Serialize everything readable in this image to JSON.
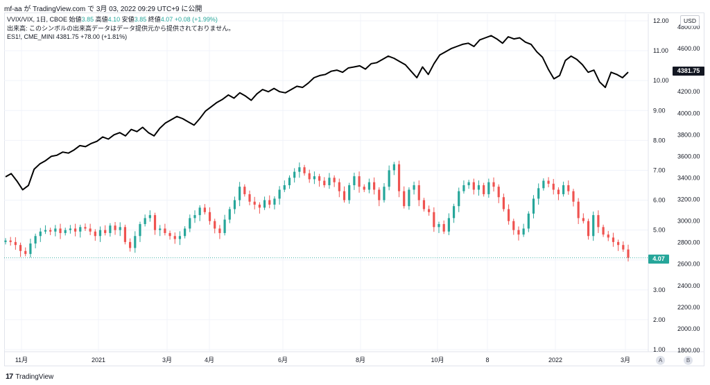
{
  "header": {
    "caption": "mf-aa が TradingView.com で 3月 03, 2022 09:29 UTC+9 に公開"
  },
  "legend": {
    "vvix_symbol": "VVIX/VIX, 1日, CBOE",
    "open_label": "始値",
    "open_value": "3.85",
    "high_label": "高値",
    "high_value": "4.10",
    "low_label": "安値",
    "low_value": "3.85",
    "close_label": "終値",
    "close_value": "4.07",
    "change": "+0.08 (+1.99%)",
    "volume_notice": "出来高: このシンボルの出来高データはデータ提供元から提供されておりません。",
    "es_symbol": "ES1!, CME_MINI",
    "es_value": "4381.75",
    "es_change": "+78.00 (+1.81%)"
  },
  "currency_button": "USD",
  "price_tags": {
    "es": "4381.75",
    "vvix": "4.07"
  },
  "buttons": {
    "a": "A",
    "b": "B"
  },
  "footer": {
    "logo": "17",
    "brand": "TradingView"
  },
  "colors": {
    "up": "#26a69a",
    "down": "#ef5350",
    "es_line": "#000000",
    "tag_dark": "#131722"
  },
  "chart_data": {
    "type": "line",
    "x_ticks": [
      "11月",
      "2021",
      "3月",
      "4月",
      "6月",
      "8月",
      "10月",
      "8",
      "2022",
      "3月"
    ],
    "y_left_label": "",
    "vvix_axis_ticks": [
      "12.00",
      "11.00",
      "10.00",
      "9.00",
      "8.00",
      "7.00",
      "6.00",
      "5.00",
      "4.00",
      "3.00",
      "2.00",
      "1.00"
    ],
    "es_axis_ticks": [
      "4800.00",
      "4600.00",
      "4400.00",
      "4200.00",
      "4000.00",
      "3800.00",
      "3600.00",
      "3400.00",
      "3200.00",
      "3000.00",
      "2800.00",
      "2600.00",
      "2400.00",
      "2200.00",
      "2000.00",
      "1800.00"
    ],
    "vvix_ylim": [
      1,
      12
    ],
    "es_ylim": [
      1800,
      4800
    ],
    "vvix_last": 4.07,
    "es_last": 4381.75,
    "series": [
      {
        "name": "ES1!, CME_MINI",
        "type": "line",
        "values": [
          3410,
          3440,
          3370,
          3290,
          3330,
          3480,
          3530,
          3560,
          3600,
          3610,
          3640,
          3630,
          3660,
          3700,
          3690,
          3720,
          3740,
          3780,
          3760,
          3800,
          3820,
          3790,
          3850,
          3830,
          3870,
          3820,
          3790,
          3860,
          3910,
          3940,
          3970,
          3950,
          3920,
          3890,
          3950,
          4020,
          4060,
          4100,
          4130,
          4170,
          4140,
          4190,
          4160,
          4120,
          4180,
          4220,
          4200,
          4230,
          4200,
          4190,
          4220,
          4250,
          4240,
          4280,
          4330,
          4350,
          4360,
          4390,
          4400,
          4380,
          4420,
          4430,
          4440,
          4410,
          4460,
          4470,
          4500,
          4530,
          4510,
          4480,
          4450,
          4390,
          4330,
          4430,
          4360,
          4460,
          4540,
          4570,
          4600,
          4620,
          4640,
          4650,
          4620,
          4680,
          4700,
          4720,
          4690,
          4650,
          4710,
          4690,
          4700,
          4660,
          4640,
          4570,
          4520,
          4410,
          4320,
          4350,
          4490,
          4530,
          4500,
          4450,
          4380,
          4400,
          4290,
          4240,
          4380,
          4360,
          4330,
          4381.75
        ]
      },
      {
        "name": "VVIX/VIX, 1日, CBOE",
        "type": "candlestick",
        "closes": [
          4.65,
          4.6,
          4.5,
          4.3,
          4.2,
          4.55,
          4.8,
          4.95,
          5.0,
          4.95,
          5.05,
          4.9,
          5.0,
          5.05,
          4.95,
          5.1,
          5.05,
          4.95,
          4.8,
          5.0,
          4.9,
          5.15,
          5.0,
          5.1,
          4.6,
          4.4,
          4.8,
          5.2,
          5.4,
          5.5,
          5.0,
          5.05,
          4.9,
          4.8,
          4.7,
          4.8,
          5.05,
          5.4,
          5.5,
          5.75,
          5.6,
          5.3,
          5.05,
          4.9,
          5.35,
          5.7,
          6.0,
          6.45,
          6.2,
          5.95,
          5.85,
          5.75,
          6.0,
          5.85,
          6.05,
          6.35,
          6.5,
          6.75,
          6.95,
          7.1,
          6.9,
          6.7,
          6.8,
          6.65,
          6.5,
          6.75,
          6.6,
          6.3,
          6.0,
          6.5,
          6.8,
          6.45,
          6.35,
          6.6,
          6.35,
          6.0,
          6.45,
          7.0,
          7.2,
          6.3,
          5.8,
          6.35,
          6.5,
          6.0,
          5.7,
          5.6,
          5.1,
          5.2,
          4.95,
          5.4,
          5.8,
          6.3,
          6.5,
          6.6,
          6.35,
          6.5,
          6.2,
          6.6,
          6.45,
          6.1,
          5.7,
          5.3,
          5.0,
          4.85,
          5.05,
          5.55,
          6.05,
          6.4,
          6.65,
          6.55,
          6.35,
          6.2,
          6.5,
          6.3,
          5.95,
          5.4,
          5.3,
          4.8,
          5.5,
          5.1,
          4.85,
          4.75,
          4.6,
          4.5,
          4.35,
          4.07
        ]
      }
    ]
  }
}
